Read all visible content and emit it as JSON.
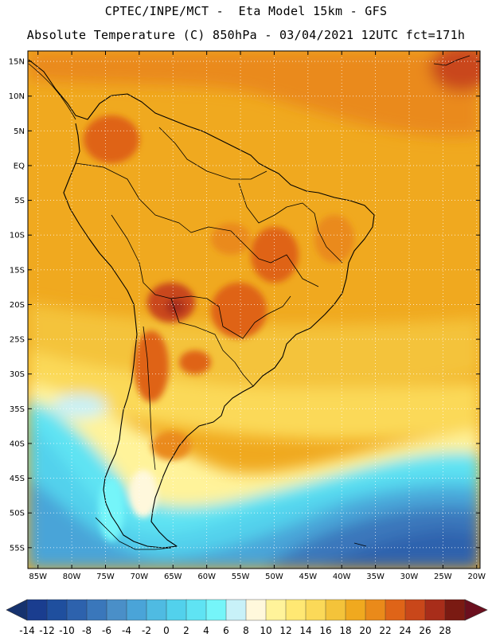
{
  "title": {
    "line1": "CPTEC/INPE/MCT -  Eta Model 15km - GFS",
    "line2": "Absolute Temperature (C) 850hPa - 03/04/2021 12UTC fct=171h"
  },
  "map": {
    "lat_ticks": [
      "15N",
      "10N",
      "5N",
      "EQ",
      "5S",
      "10S",
      "15S",
      "20S",
      "25S",
      "30S",
      "35S",
      "40S",
      "45S",
      "50S",
      "55S"
    ],
    "lon_ticks": [
      "85W",
      "80W",
      "75W",
      "70W",
      "65W",
      "60W",
      "55W",
      "50W",
      "45W",
      "40W",
      "35W",
      "30W",
      "25W",
      "20W"
    ],
    "lat_range": [
      -58,
      16.5
    ],
    "lon_range": [
      -86.5,
      -19.5
    ],
    "grid": true
  },
  "colorbar": {
    "labels": [
      "-14",
      "-12",
      "-10",
      "-8",
      "-6",
      "-4",
      "-2",
      "0",
      "2",
      "4",
      "6",
      "8",
      "10",
      "12",
      "14",
      "16",
      "18",
      "20",
      "22",
      "24",
      "26",
      "28"
    ],
    "colors": [
      "#1a3d8f",
      "#1f4f9e",
      "#2d62ad",
      "#3a77bb",
      "#4a8fc8",
      "#4aa4d8",
      "#4fbbe2",
      "#52d1ec",
      "#5fe3f3",
      "#75f5f9",
      "#c8f1f8",
      "#fff8dc",
      "#fff39a",
      "#ffe873",
      "#fbd958",
      "#f4c33a",
      "#f0a91f",
      "#ea8a1a",
      "#df6418",
      "#c9471a",
      "#a82d1a",
      "#7a1a12"
    ],
    "under_color": "#16326e",
    "over_color": "#6b0f1e"
  }
}
